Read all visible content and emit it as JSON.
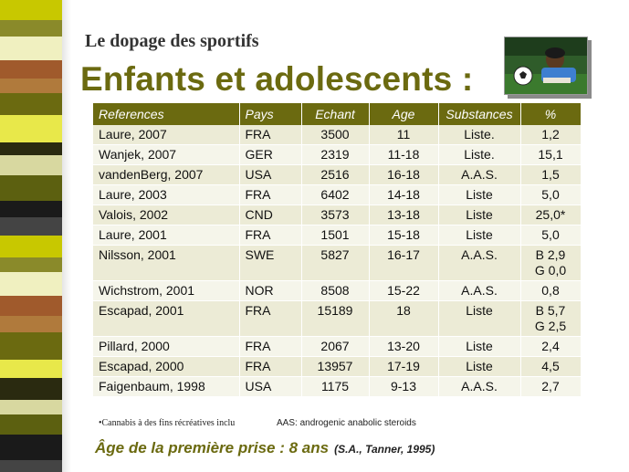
{
  "slide": {
    "subtitle": "Le dopage des sportifs",
    "title": "Enfants et adolescents :",
    "image_description": "child-with-soccer-ball"
  },
  "table": {
    "headers": [
      "References",
      "Pays",
      "Echant",
      "Age",
      "Substances",
      "%"
    ],
    "rows": [
      {
        "ref": "Laure, 2007",
        "pays": "FRA",
        "echant": "3500",
        "age": "11",
        "subst": "Liste.",
        "pct": "1,2",
        "pct2": ""
      },
      {
        "ref": "Wanjek, 2007",
        "pays": "GER",
        "echant": "2319",
        "age": "11-18",
        "subst": "Liste.",
        "pct": "15,1",
        "pct2": ""
      },
      {
        "ref": "vandenBerg, 2007",
        "pays": "USA",
        "echant": "2516",
        "age": "16-18",
        "subst": "A.A.S.",
        "pct": "1,5",
        "pct2": ""
      },
      {
        "ref": "Laure, 2003",
        "pays": "FRA",
        "echant": "6402",
        "age": "14-18",
        "subst": "Liste",
        "pct": "5,0",
        "pct2": ""
      },
      {
        "ref": "Valois, 2002",
        "pays": "CND",
        "echant": "3573",
        "age": "13-18",
        "subst": "Liste",
        "pct": "25,0*",
        "pct2": ""
      },
      {
        "ref": "Laure, 2001",
        "pays": "FRA",
        "echant": "1501",
        "age": "15-18",
        "subst": "Liste",
        "pct": "5,0",
        "pct2": ""
      },
      {
        "ref": "Nilsson, 2001",
        "pays": "SWE",
        "echant": "5827",
        "age": "16-17",
        "subst": "A.A.S.",
        "pct": "B 2,9",
        "pct2": "G 0,0"
      },
      {
        "ref": "Wichstrom, 2001",
        "pays": "NOR",
        "echant": "8508",
        "age": "15-22",
        "subst": "A.A.S.",
        "pct": "0,8",
        "pct2": ""
      },
      {
        "ref": "Escapad, 2001",
        "pays": "FRA",
        "echant": "15189",
        "age": "18",
        "subst": "Liste",
        "pct": "B 5,7",
        "pct2": "G 2,5"
      },
      {
        "ref": "Pillard, 2000",
        "pays": "FRA",
        "echant": "2067",
        "age": "13-20",
        "subst": "Liste",
        "pct": "2,4",
        "pct2": ""
      },
      {
        "ref": "Escapad, 2000",
        "pays": "FRA",
        "echant": "13957",
        "age": "17-19",
        "subst": "Liste",
        "pct": "4,5",
        "pct2": ""
      },
      {
        "ref": "Faigenbaum, 1998",
        "pays": "USA",
        "echant": "1175",
        "age": "9-13",
        "subst": "A.A.S.",
        "pct": "2,7",
        "pct2": ""
      }
    ]
  },
  "footnotes": {
    "cannabis": "•Cannabis à des fins récréatives inclu",
    "aas": "AAS: androgenic anabolic steroids"
  },
  "bottom": {
    "label": "Âge de la première prise : ",
    "value": "8 ans",
    "reference": "(S.A., Tanner, 1995)"
  },
  "colors": {
    "accent": "#6b6a10",
    "row_light": "#f5f5ea",
    "row_dark": "#ecebd6"
  }
}
